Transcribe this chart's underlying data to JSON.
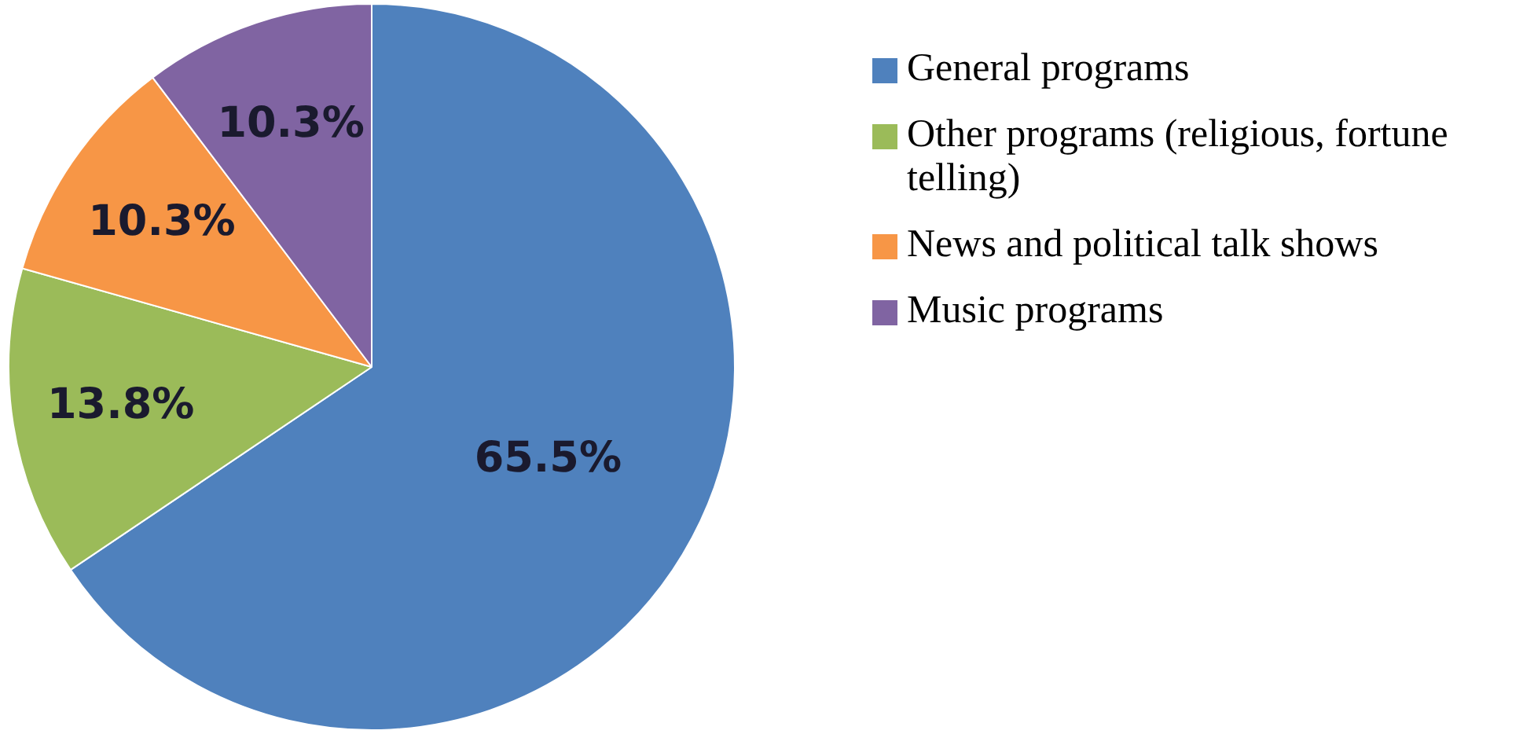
{
  "chart_data": {
    "type": "pie",
    "categories": [
      "General programs",
      "Other programs (religious, fortune telling)",
      "News and political talk shows",
      "Music programs"
    ],
    "values": [
      65.5,
      13.8,
      10.3,
      10.3
    ],
    "colors": [
      "#4f81bd",
      "#9bbb59",
      "#f79646",
      "#8064a2"
    ],
    "value_labels": [
      "65.5%",
      "13.8%",
      "10.3%",
      "10.3%"
    ],
    "legend": "right"
  }
}
